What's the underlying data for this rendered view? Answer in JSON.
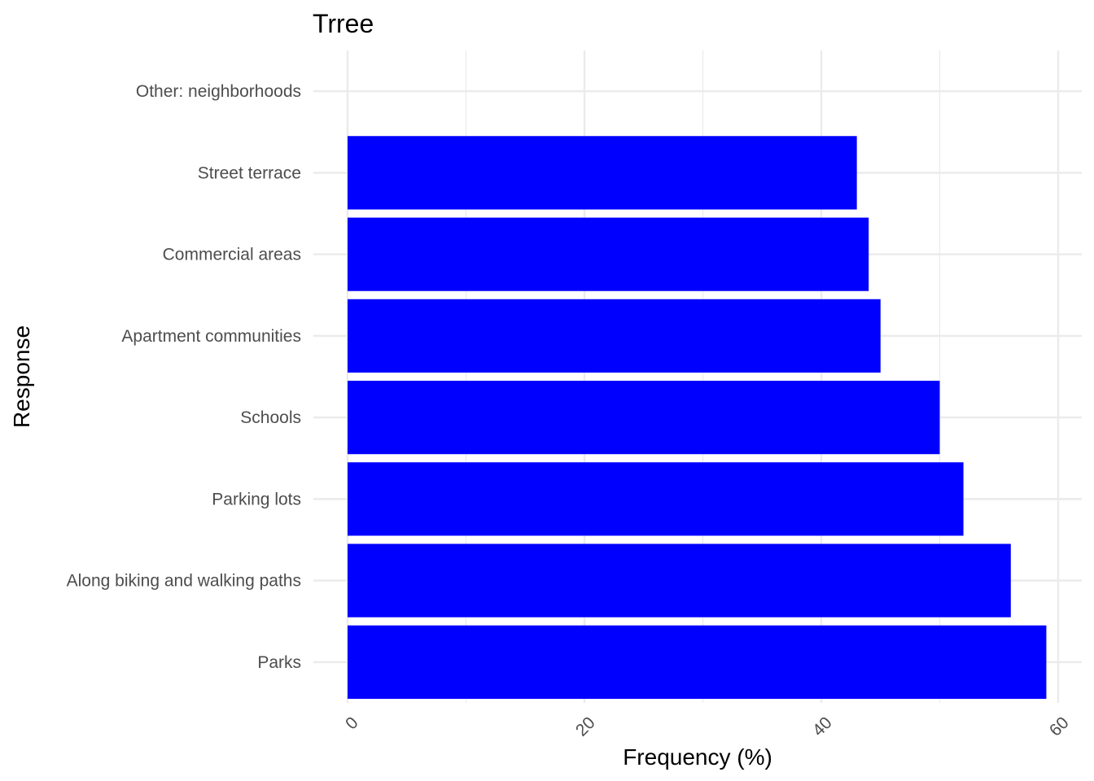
{
  "chart_data": {
    "type": "bar",
    "orientation": "horizontal",
    "title": "Trree",
    "xlabel": "Frequency (%)",
    "ylabel": "Response",
    "categories": [
      "Parks",
      "Along biking and walking paths",
      "Parking lots",
      "Schools",
      "Apartment communities",
      "Commercial areas",
      "Street terrace",
      "Other: neighborhoods"
    ],
    "values": [
      59,
      56,
      52,
      50,
      45,
      44,
      43,
      0
    ],
    "xlim": [
      0,
      61
    ],
    "x_ticks": [
      0,
      20,
      40,
      60
    ],
    "x_tick_labels": [
      "0",
      "20",
      "40",
      "60"
    ],
    "grid": true,
    "legend": "none",
    "bar_color": "#0000FF",
    "grid_color": "#EBEBEB"
  }
}
